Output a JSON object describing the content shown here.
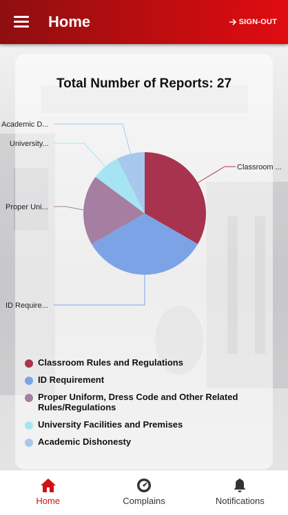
{
  "header": {
    "title": "Home",
    "signout_label": "SIGN-OUT"
  },
  "card": {
    "title": "Total Number of Reports: 27"
  },
  "chart_data": {
    "type": "pie",
    "title": "Total Number of Reports: 27",
    "total": 27,
    "series": [
      {
        "name": "Classroom Rules and Regulations",
        "short": "Classroom ...",
        "value": 9,
        "color": "#a8334f"
      },
      {
        "name": "ID Requirement",
        "short": "ID Require...",
        "value": 9,
        "color": "#7ba3e6"
      },
      {
        "name": "Proper Uniform, Dress Code and Other Related Rules/Regulations",
        "short": "Proper Uni...",
        "value": 5,
        "color": "#a57ea1"
      },
      {
        "name": "University Facilities and Premises",
        "short": "University...",
        "value": 2,
        "color": "#a7e4f3"
      },
      {
        "name": "Academic Dishonesty",
        "short": "Academic D...",
        "value": 2,
        "color": "#a6c8ec"
      }
    ]
  },
  "legend": [
    {
      "label": "Classroom Rules and Regulations",
      "color": "#a8334f"
    },
    {
      "label": "ID Requirement",
      "color": "#7ba3e6"
    },
    {
      "label": "Proper Uniform, Dress Code and Other Related Rules/Regulations",
      "color": "#a57ea1"
    },
    {
      "label": "University Facilities and Premises",
      "color": "#a7e4f3"
    },
    {
      "label": "Academic Dishonesty",
      "color": "#a6c8ec"
    }
  ],
  "nav": {
    "home": {
      "label": "Home",
      "icon": "home-icon",
      "active_color": "#d01012"
    },
    "complains": {
      "label": "Complains",
      "icon": "clock-badge-icon"
    },
    "notifications": {
      "label": "Notifications",
      "icon": "bell-icon"
    }
  },
  "colors": {
    "header_start": "#8e0f10",
    "header_end": "#e00c10",
    "accent": "#d01012"
  }
}
